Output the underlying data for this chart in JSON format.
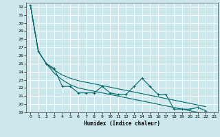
{
  "xlabel": "Humidex (Indice chaleur)",
  "bg_color": "#cce8ec",
  "grid_color": "#ffffff",
  "line_color": "#006666",
  "xlim": [
    -0.5,
    23.5
  ],
  "ylim": [
    19,
    32.5
  ],
  "yticks": [
    19,
    20,
    21,
    22,
    23,
    24,
    25,
    26,
    27,
    28,
    29,
    30,
    31,
    32
  ],
  "xticks": [
    0,
    1,
    2,
    3,
    4,
    5,
    6,
    7,
    8,
    9,
    10,
    11,
    12,
    13,
    14,
    15,
    16,
    17,
    18,
    19,
    20,
    21,
    22,
    23
  ],
  "x_vals": [
    0,
    1,
    2,
    3,
    4,
    5,
    6,
    7,
    8,
    9,
    10,
    11,
    12,
    13,
    14,
    15,
    16,
    17,
    18,
    19,
    20,
    21,
    22
  ],
  "y_zigzag": [
    32.2,
    26.5,
    25.0,
    24.4,
    22.2,
    22.2,
    21.4,
    21.4,
    21.4,
    22.2,
    21.4,
    21.2,
    21.2,
    22.2,
    23.2,
    22.2,
    21.2,
    21.2,
    19.4,
    19.4,
    19.4,
    19.6,
    19.2
  ],
  "y_upper": [
    32.2,
    26.5,
    25.0,
    24.2,
    23.6,
    23.2,
    22.9,
    22.7,
    22.5,
    22.3,
    22.1,
    21.9,
    21.7,
    21.5,
    21.3,
    21.1,
    20.9,
    20.7,
    20.5,
    20.3,
    20.1,
    19.9,
    19.7
  ],
  "y_lower": [
    32.2,
    26.5,
    25.0,
    23.8,
    23.0,
    22.4,
    22.0,
    21.8,
    21.6,
    21.4,
    21.2,
    21.0,
    20.8,
    20.6,
    20.4,
    20.2,
    20.0,
    19.8,
    19.6,
    19.4,
    19.2,
    19.0,
    18.8
  ]
}
